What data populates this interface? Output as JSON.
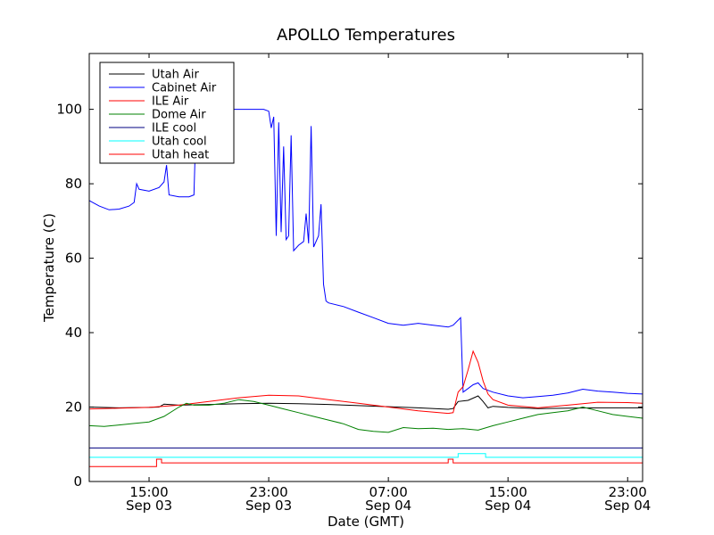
{
  "chart_data": {
    "type": "line",
    "title": "APOLLO Temperatures",
    "xlabel": "Date (GMT)",
    "ylabel": "Temperature (C)",
    "xlim": [
      "2013-09-03 11:00",
      "2013-09-05 00:00"
    ],
    "ylim": [
      0,
      115
    ],
    "grid": false,
    "legend_position": "top-left",
    "xticks": [
      {
        "at": "2013-09-03 15:00",
        "label1": "15:00",
        "label2": "Sep 03"
      },
      {
        "at": "2013-09-03 23:00",
        "label1": "23:00",
        "label2": "Sep 03"
      },
      {
        "at": "2013-09-04 07:00",
        "label1": "07:00",
        "label2": "Sep 04"
      },
      {
        "at": "2013-09-04 15:00",
        "label1": "15:00",
        "label2": "Sep 04"
      },
      {
        "at": "2013-09-04 23:00",
        "label1": "23:00",
        "label2": "Sep 04"
      }
    ],
    "yticks": [
      {
        "value": 0,
        "label": "0"
      },
      {
        "value": 20,
        "label": "20"
      },
      {
        "value": 40,
        "label": "40"
      },
      {
        "value": 60,
        "label": "60"
      },
      {
        "value": 80,
        "label": "80"
      },
      {
        "value": 100,
        "label": "100"
      }
    ],
    "series": [
      {
        "name": "Utah Air",
        "color": "#000000",
        "points": [
          [
            "2013-09-03 11:00",
            20.0
          ],
          [
            "2013-09-03 13:00",
            19.8
          ],
          [
            "2013-09-03 15:00",
            19.9
          ],
          [
            "2013-09-03 15:40",
            20.0
          ],
          [
            "2013-09-03 16:00",
            20.8
          ],
          [
            "2013-09-03 17:00",
            20.5
          ],
          [
            "2013-09-03 19:00",
            20.7
          ],
          [
            "2013-09-03 21:00",
            20.9
          ],
          [
            "2013-09-03 23:00",
            21.0
          ],
          [
            "2013-09-04 01:00",
            20.9
          ],
          [
            "2013-09-04 03:00",
            20.7
          ],
          [
            "2013-09-04 05:00",
            20.4
          ],
          [
            "2013-09-04 07:00",
            20.1
          ],
          [
            "2013-09-04 09:00",
            19.8
          ],
          [
            "2013-09-04 11:00",
            19.4
          ],
          [
            "2013-09-04 11:20",
            19.6
          ],
          [
            "2013-09-04 11:40",
            21.5
          ],
          [
            "2013-09-04 12:20",
            21.8
          ],
          [
            "2013-09-04 13:00",
            23.0
          ],
          [
            "2013-09-04 13:20",
            21.5
          ],
          [
            "2013-09-04 13:40",
            19.8
          ],
          [
            "2013-09-04 14:00",
            20.2
          ],
          [
            "2013-09-04 15:00",
            19.9
          ],
          [
            "2013-09-04 17:00",
            19.6
          ],
          [
            "2013-09-04 19:00",
            19.7
          ],
          [
            "2013-09-04 21:00",
            19.8
          ],
          [
            "2013-09-04 23:00",
            19.8
          ],
          [
            "2013-09-05 00:00",
            19.8
          ]
        ]
      },
      {
        "name": "Cabinet Air",
        "color": "#0000ff",
        "points": [
          [
            "2013-09-03 11:00",
            75.5
          ],
          [
            "2013-09-03 11:40",
            74.0
          ],
          [
            "2013-09-03 12:20",
            73.0
          ],
          [
            "2013-09-03 13:00",
            73.2
          ],
          [
            "2013-09-03 13:40",
            74.0
          ],
          [
            "2013-09-03 14:00",
            75.0
          ],
          [
            "2013-09-03 14:10",
            80.0
          ],
          [
            "2013-09-03 14:20",
            78.5
          ],
          [
            "2013-09-03 15:00",
            78.0
          ],
          [
            "2013-09-03 15:40",
            79.0
          ],
          [
            "2013-09-03 16:00",
            80.5
          ],
          [
            "2013-09-03 16:10",
            85.0
          ],
          [
            "2013-09-03 16:20",
            77.0
          ],
          [
            "2013-09-03 17:00",
            76.5
          ],
          [
            "2013-09-03 17:40",
            76.5
          ],
          [
            "2013-09-03 18:00",
            77.0
          ],
          [
            "2013-09-03 18:10",
            100.0
          ],
          [
            "2013-09-03 22:40",
            100.0
          ],
          [
            "2013-09-03 23:00",
            99.5
          ],
          [
            "2013-09-03 23:10",
            95.0
          ],
          [
            "2013-09-03 23:20",
            98.0
          ],
          [
            "2013-09-03 23:30",
            66.0
          ],
          [
            "2013-09-03 23:40",
            96.5
          ],
          [
            "2013-09-03 23:50",
            67.0
          ],
          [
            "2013-09-04 00:00",
            90.0
          ],
          [
            "2013-09-04 00:10",
            65.0
          ],
          [
            "2013-09-04 00:20",
            66.0
          ],
          [
            "2013-09-04 00:30",
            93.0
          ],
          [
            "2013-09-04 00:40",
            62.0
          ],
          [
            "2013-09-04 01:00",
            63.5
          ],
          [
            "2013-09-04 01:20",
            64.5
          ],
          [
            "2013-09-04 01:30",
            72.0
          ],
          [
            "2013-09-04 01:40",
            64.0
          ],
          [
            "2013-09-04 01:50",
            95.5
          ],
          [
            "2013-09-04 02:00",
            63.0
          ],
          [
            "2013-09-04 02:20",
            66.0
          ],
          [
            "2013-09-04 02:30",
            74.5
          ],
          [
            "2013-09-04 02:40",
            53.0
          ],
          [
            "2013-09-04 02:50",
            48.5
          ],
          [
            "2013-09-04 03:00",
            48.0
          ],
          [
            "2013-09-04 04:00",
            47.0
          ],
          [
            "2013-09-04 05:00",
            45.5
          ],
          [
            "2013-09-04 06:00",
            44.0
          ],
          [
            "2013-09-04 07:00",
            42.5
          ],
          [
            "2013-09-04 08:00",
            42.0
          ],
          [
            "2013-09-04 09:00",
            42.5
          ],
          [
            "2013-09-04 10:00",
            42.0
          ],
          [
            "2013-09-04 11:00",
            41.5
          ],
          [
            "2013-09-04 11:20",
            42.0
          ],
          [
            "2013-09-04 11:50",
            44.0
          ],
          [
            "2013-09-04 12:00",
            24.0
          ],
          [
            "2013-09-04 12:20",
            25.0
          ],
          [
            "2013-09-04 12:40",
            26.0
          ],
          [
            "2013-09-04 13:00",
            26.5
          ],
          [
            "2013-09-04 13:20",
            25.0
          ],
          [
            "2013-09-04 14:00",
            24.0
          ],
          [
            "2013-09-04 15:00",
            23.0
          ],
          [
            "2013-09-04 16:00",
            22.5
          ],
          [
            "2013-09-04 17:00",
            22.8
          ],
          [
            "2013-09-04 18:00",
            23.2
          ],
          [
            "2013-09-04 19:00",
            23.8
          ],
          [
            "2013-09-04 20:00",
            24.8
          ],
          [
            "2013-09-04 21:00",
            24.3
          ],
          [
            "2013-09-04 22:00",
            24.0
          ],
          [
            "2013-09-04 23:00",
            23.7
          ],
          [
            "2013-09-05 00:00",
            23.5
          ]
        ]
      },
      {
        "name": "ILE Air",
        "color": "#ff0000",
        "points": [
          [
            "2013-09-03 11:00",
            19.5
          ],
          [
            "2013-09-03 13:00",
            19.7
          ],
          [
            "2013-09-03 15:00",
            19.9
          ],
          [
            "2013-09-03 17:00",
            20.5
          ],
          [
            "2013-09-03 19:00",
            21.5
          ],
          [
            "2013-09-03 21:00",
            22.5
          ],
          [
            "2013-09-03 23:00",
            23.2
          ],
          [
            "2013-09-04 01:00",
            23.0
          ],
          [
            "2013-09-04 03:00",
            22.0
          ],
          [
            "2013-09-04 05:00",
            21.0
          ],
          [
            "2013-09-04 07:00",
            20.0
          ],
          [
            "2013-09-04 09:00",
            19.0
          ],
          [
            "2013-09-04 11:00",
            18.3
          ],
          [
            "2013-09-04 11:20",
            18.5
          ],
          [
            "2013-09-04 11:40",
            24.0
          ],
          [
            "2013-09-04 12:00",
            25.5
          ],
          [
            "2013-09-04 12:20",
            30.0
          ],
          [
            "2013-09-04 12:40",
            35.0
          ],
          [
            "2013-09-04 13:00",
            32.0
          ],
          [
            "2013-09-04 13:20",
            27.0
          ],
          [
            "2013-09-04 13:40",
            23.5
          ],
          [
            "2013-09-04 14:00",
            22.0
          ],
          [
            "2013-09-04 15:00",
            20.5
          ],
          [
            "2013-09-04 17:00",
            19.8
          ],
          [
            "2013-09-04 19:00",
            20.5
          ],
          [
            "2013-09-04 21:00",
            21.3
          ],
          [
            "2013-09-04 23:00",
            21.2
          ],
          [
            "2013-09-05 00:00",
            21.0
          ]
        ]
      },
      {
        "name": "Dome Air",
        "color": "#008000",
        "points": [
          [
            "2013-09-03 11:00",
            15.0
          ],
          [
            "2013-09-03 12:00",
            14.8
          ],
          [
            "2013-09-03 13:00",
            15.2
          ],
          [
            "2013-09-03 14:00",
            15.6
          ],
          [
            "2013-09-03 15:00",
            16.0
          ],
          [
            "2013-09-03 16:00",
            17.5
          ],
          [
            "2013-09-03 17:00",
            20.0
          ],
          [
            "2013-09-03 17:30",
            21.0
          ],
          [
            "2013-09-03 18:00",
            20.5
          ],
          [
            "2013-09-03 19:00",
            20.5
          ],
          [
            "2013-09-03 20:00",
            21.0
          ],
          [
            "2013-09-03 21:00",
            22.0
          ],
          [
            "2013-09-03 22:00",
            21.5
          ],
          [
            "2013-09-03 23:00",
            20.5
          ],
          [
            "2013-09-04 00:00",
            19.5
          ],
          [
            "2013-09-04 01:00",
            18.5
          ],
          [
            "2013-09-04 02:00",
            17.5
          ],
          [
            "2013-09-04 03:00",
            16.5
          ],
          [
            "2013-09-04 04:00",
            15.5
          ],
          [
            "2013-09-04 05:00",
            14.0
          ],
          [
            "2013-09-04 06:00",
            13.5
          ],
          [
            "2013-09-04 07:00",
            13.2
          ],
          [
            "2013-09-04 08:00",
            14.5
          ],
          [
            "2013-09-04 09:00",
            14.2
          ],
          [
            "2013-09-04 10:00",
            14.3
          ],
          [
            "2013-09-04 11:00",
            14.0
          ],
          [
            "2013-09-04 12:00",
            14.2
          ],
          [
            "2013-09-04 13:00",
            13.8
          ],
          [
            "2013-09-04 14:00",
            15.0
          ],
          [
            "2013-09-04 15:00",
            16.0
          ],
          [
            "2013-09-04 16:00",
            17.0
          ],
          [
            "2013-09-04 17:00",
            18.0
          ],
          [
            "2013-09-04 18:00",
            18.5
          ],
          [
            "2013-09-04 19:00",
            19.0
          ],
          [
            "2013-09-04 20:00",
            20.0
          ],
          [
            "2013-09-04 21:00",
            19.0
          ],
          [
            "2013-09-04 22:00",
            18.0
          ],
          [
            "2013-09-04 23:00",
            17.5
          ],
          [
            "2013-09-05 00:00",
            17.0
          ]
        ]
      },
      {
        "name": "ILE cool",
        "color": "#000080",
        "points": [
          [
            "2013-09-03 11:00",
            9.0
          ],
          [
            "2013-09-05 00:00",
            9.0
          ]
        ]
      },
      {
        "name": "Utah cool",
        "color": "#00ffff",
        "points": [
          [
            "2013-09-03 11:00",
            6.5
          ],
          [
            "2013-09-04 11:40",
            6.5
          ],
          [
            "2013-09-04 11:40",
            7.5
          ],
          [
            "2013-09-04 13:30",
            7.5
          ],
          [
            "2013-09-04 13:30",
            6.5
          ],
          [
            "2013-09-05 00:00",
            6.5
          ]
        ]
      },
      {
        "name": "Utah heat",
        "color": "#ff0000",
        "points": [
          [
            "2013-09-03 11:00",
            4.0
          ],
          [
            "2013-09-03 15:30",
            4.0
          ],
          [
            "2013-09-03 15:30",
            6.0
          ],
          [
            "2013-09-03 15:50",
            6.0
          ],
          [
            "2013-09-03 15:50",
            5.0
          ],
          [
            "2013-09-04 11:00",
            5.0
          ],
          [
            "2013-09-04 11:00",
            6.0
          ],
          [
            "2013-09-04 11:20",
            6.0
          ],
          [
            "2013-09-04 11:20",
            5.0
          ],
          [
            "2013-09-05 00:00",
            5.0
          ]
        ]
      }
    ]
  }
}
